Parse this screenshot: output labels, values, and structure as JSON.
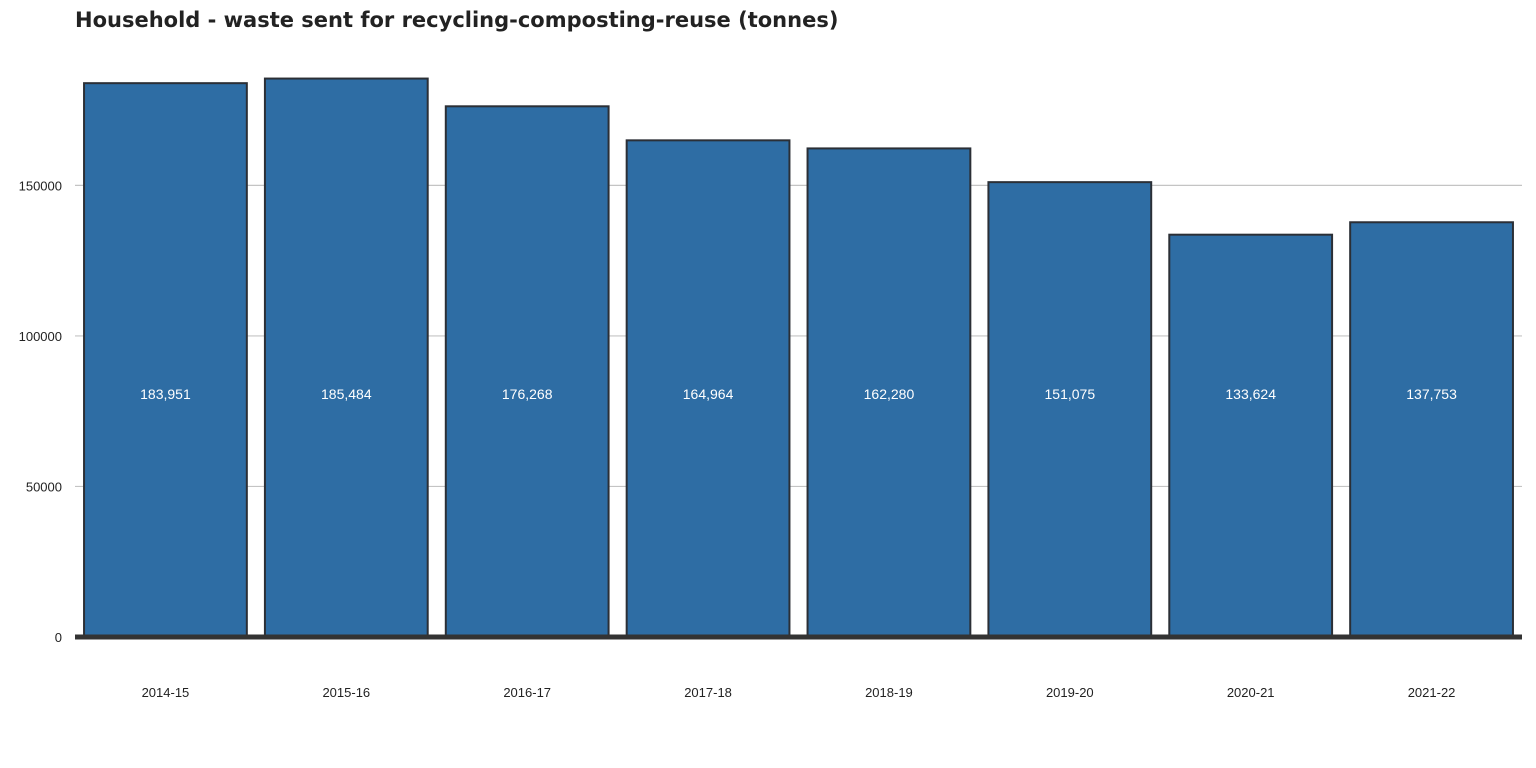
{
  "chart_data": {
    "type": "bar",
    "title": "Household - waste sent for recycling-composting-reuse (tonnes)",
    "xlabel": "",
    "ylabel": "",
    "categories": [
      "2014-15",
      "2015-16",
      "2016-17",
      "2017-18",
      "2018-19",
      "2019-20",
      "2020-21",
      "2021-22"
    ],
    "values": [
      183951,
      185484,
      176268,
      164964,
      162280,
      151075,
      133624,
      137753
    ],
    "data_labels": [
      "183,951",
      "185,484",
      "176,268",
      "164,964",
      "162,280",
      "151,075",
      "133,624",
      "137,753"
    ],
    "y_ticks": [
      0,
      50000,
      100000,
      150000
    ],
    "y_tick_labels": [
      "0",
      "50000",
      "100000",
      "150000"
    ],
    "ylim": [
      0,
      186000
    ],
    "grid": true,
    "legend": "none",
    "colors": {
      "bar": "#2e6da4",
      "bar_outline": "#2b2f36",
      "grid": "#c4c4c4",
      "baseline": "#333333",
      "data_label": "#ffffff",
      "tick_label": "#222222",
      "title": "#222222"
    }
  }
}
